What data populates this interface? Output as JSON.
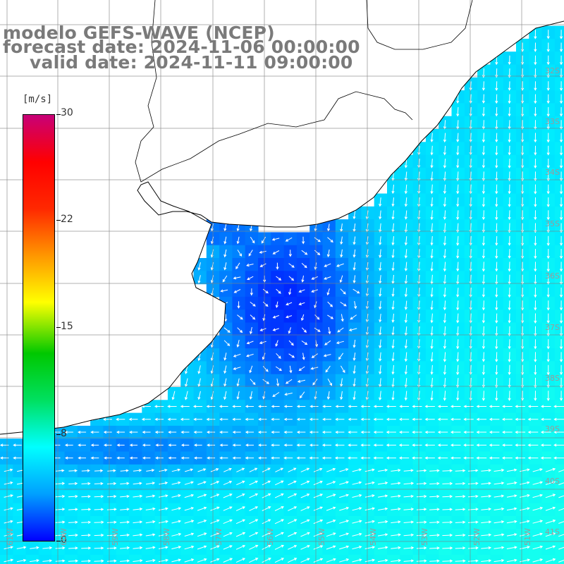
{
  "header": {
    "line1": "modelo GEFS-WAVE (NCEP)",
    "line2": "forecast date: 2024-11-06 00:00:00",
    "line3": "valid date: 2024-11-11 09:00:00"
  },
  "colorbar": {
    "unit": "[m/s]",
    "ticks": [
      "30",
      "22",
      "15",
      "8",
      "0"
    ],
    "tick_values": [
      30,
      22,
      15,
      8,
      0
    ],
    "colors": [
      "#0000ff",
      "#00a0ff",
      "#00ffff",
      "#00e060",
      "#00c800",
      "#ffff00",
      "#ff9600",
      "#ff2800",
      "#ff0000",
      "#c80078"
    ]
  },
  "map": {
    "lat_labels": [
      "32S",
      "33S",
      "34S",
      "35S",
      "36S",
      "37S",
      "38S",
      "39S",
      "40S",
      "41S"
    ],
    "lon_labels": [
      "61W",
      "60W",
      "59W",
      "58W",
      "57W",
      "56W",
      "55W",
      "54W",
      "53W",
      "52W",
      "51W"
    ],
    "land_color": "#ffffff",
    "grid_color": "#808080",
    "coast_color": "#000000",
    "arrow_color": "#ffffff"
  }
}
